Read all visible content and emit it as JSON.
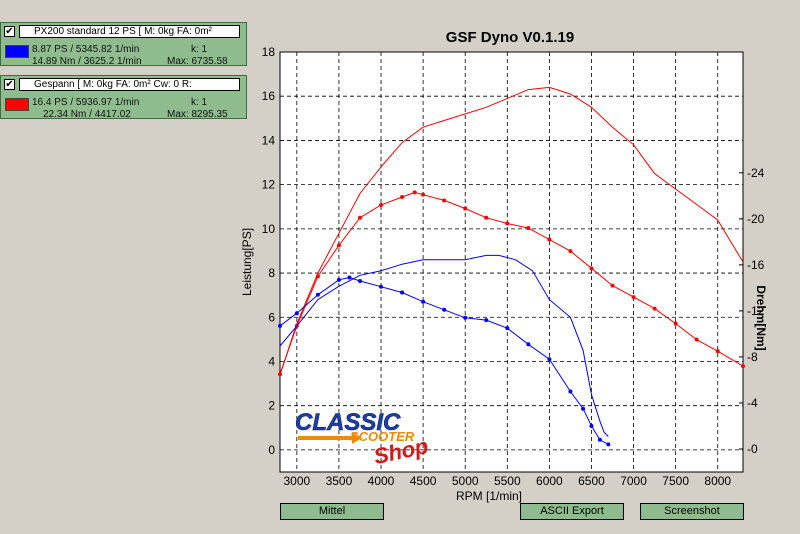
{
  "legend": [
    {
      "checked_mark": "✔",
      "name": "PX200 standard 12 PS [ M: 0kg  FA: 0m²",
      "swatch_color": "#0000ff",
      "power_line": "8.87 PS / 5345.82 1/min",
      "k_line": "k: 1",
      "torque_line": "14.89 Nm / 3625.2 1/min",
      "max_line": "Max: 6735.58"
    },
    {
      "checked_mark": "✔",
      "name": "Gespann [ M: 0kg  FA: 0m²  Cw: 0  R:",
      "swatch_color": "#ff0000",
      "power_line": "16.4 PS / 5936.97 1/min",
      "k_line": "k: 1",
      "torque_line": "22.34 Nm / 4417.02",
      "max_line": "Max: 8295.35"
    }
  ],
  "buttons": {
    "mittel": "Mittel",
    "ascii": "ASCII Export",
    "screenshot": "Screenshot"
  },
  "logo": {
    "line1": "CLASSIC",
    "line2": "SCOOTER",
    "line3": "Shop"
  },
  "chart_data": {
    "type": "line",
    "title": "GSF Dyno V0.1.19",
    "xlabel": "RPM [1/min]",
    "ylabel": "Leistung[PS]",
    "y2label": "Drehm[Nm]",
    "xlim": [
      2800,
      8300
    ],
    "ylim": [
      -1,
      18
    ],
    "y2lim": [
      -2,
      34.5
    ],
    "xticks": [
      3000,
      3500,
      4000,
      4500,
      5000,
      5500,
      6000,
      6500,
      7000,
      7500,
      8000
    ],
    "yticks": [
      0,
      2,
      4,
      6,
      8,
      10,
      12,
      14,
      16,
      18
    ],
    "y2ticks": [
      0,
      4,
      8,
      12,
      16,
      20,
      24
    ],
    "grid": true,
    "series": [
      {
        "name": "Gespann power",
        "color": "#ff0000",
        "axis": "left",
        "markers": false,
        "x": [
          2800,
          3000,
          3250,
          3500,
          3750,
          4000,
          4250,
          4500,
          4750,
          5000,
          5250,
          5500,
          5750,
          6000,
          6250,
          6500,
          6750,
          7000,
          7250,
          7500,
          7750,
          8000,
          8300
        ],
        "y": [
          3.4,
          5.7,
          8.0,
          9.8,
          11.6,
          12.8,
          13.9,
          14.6,
          14.9,
          15.2,
          15.5,
          15.9,
          16.3,
          16.4,
          16.1,
          15.5,
          14.6,
          13.8,
          12.5,
          11.8,
          11.1,
          10.4,
          8.5
        ]
      },
      {
        "name": "Gespann torque",
        "color": "#ff0000",
        "axis": "right",
        "markers": true,
        "x": [
          2800,
          3000,
          3250,
          3500,
          3750,
          4000,
          4250,
          4400,
          4500,
          4750,
          5000,
          5250,
          5500,
          5750,
          6000,
          6250,
          6500,
          6750,
          7000,
          7250,
          7500,
          7750,
          8000,
          8300
        ],
        "y": [
          6.5,
          10.7,
          15.0,
          17.7,
          20.1,
          21.2,
          21.9,
          22.3,
          22.1,
          21.6,
          20.9,
          20.1,
          19.6,
          19.2,
          18.2,
          17.2,
          15.7,
          14.2,
          13.2,
          12.2,
          10.9,
          9.5,
          8.5,
          7.2
        ]
      },
      {
        "name": "PX200 standard power",
        "color": "#0000ff",
        "axis": "left",
        "markers": false,
        "x": [
          2800,
          3000,
          3250,
          3500,
          3750,
          4000,
          4250,
          4500,
          4750,
          5000,
          5250,
          5400,
          5600,
          5800,
          6000,
          6250,
          6400,
          6500,
          6600,
          6650,
          6700
        ],
        "y": [
          4.7,
          5.6,
          6.8,
          7.4,
          7.9,
          8.1,
          8.4,
          8.6,
          8.6,
          8.6,
          8.8,
          8.8,
          8.6,
          8.1,
          6.8,
          6.0,
          4.5,
          2.5,
          1.3,
          0.8,
          0.6
        ]
      },
      {
        "name": "PX200 standard torque",
        "color": "#0000ff",
        "axis": "right",
        "markers": true,
        "x": [
          2800,
          3000,
          3250,
          3500,
          3625,
          3750,
          4000,
          4250,
          4500,
          4750,
          5000,
          5250,
          5500,
          5750,
          6000,
          6250,
          6400,
          6500,
          6600,
          6700
        ],
        "y": [
          10.7,
          11.8,
          13.4,
          14.7,
          14.9,
          14.6,
          14.1,
          13.6,
          12.8,
          12.1,
          11.4,
          11.2,
          10.5,
          9.1,
          7.8,
          5.0,
          3.5,
          2.0,
          0.8,
          0.4
        ]
      }
    ]
  }
}
